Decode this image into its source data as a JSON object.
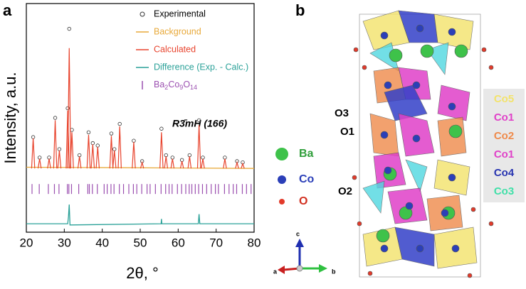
{
  "panel_labels": [
    "a",
    "b"
  ],
  "chart_data": {
    "type": "xrd",
    "xlabel": "2θ, °",
    "ylabel": "Intensity, a.u.",
    "annotation": "R3̄mH (166)",
    "xlim": [
      20,
      80
    ],
    "xticks": [
      20,
      30,
      40,
      50,
      60,
      70,
      80
    ],
    "ylim": [
      -53,
      137
    ],
    "series": [
      {
        "name": "Experimental",
        "color": "#333333",
        "marker": "circle",
        "x": [
          21.8,
          23.5,
          26.0,
          27.6,
          28.7,
          30.9,
          31.3,
          32.0,
          34.0,
          36.4,
          37.5,
          38.8,
          42.4,
          43.2,
          44.6,
          48.3,
          50.5,
          55.6,
          56.8,
          58.5,
          61.0,
          63.0,
          65.5,
          66.5,
          72.3,
          75.5,
          77.0
        ],
        "values": [
          26,
          9,
          9,
          42,
          16,
          50,
          116,
          32,
          11,
          30,
          21,
          19,
          29,
          16,
          37,
          23,
          6,
          33,
          11,
          9,
          7,
          11,
          40,
          9,
          9,
          6,
          5
        ]
      },
      {
        "name": "Background",
        "color": "#e8a93a",
        "marker": "line",
        "x": [
          20,
          80
        ],
        "values": [
          1,
          0
        ]
      },
      {
        "name": "Calculated",
        "color": "#e8442e",
        "marker": "peaks",
        "x": [
          21.8,
          23.5,
          26.0,
          27.6,
          28.7,
          30.9,
          31.3,
          32.0,
          34.0,
          36.4,
          37.5,
          38.8,
          42.4,
          43.2,
          44.6,
          48.3,
          50.5,
          55.6,
          56.8,
          58.5,
          61.0,
          63.0,
          65.5,
          66.5,
          72.3,
          75.5,
          77.0
        ],
        "values": [
          25,
          8,
          8,
          40,
          15,
          48,
          100,
          30,
          10,
          28,
          20,
          18,
          27,
          15,
          35,
          22,
          5,
          30,
          10,
          8,
          6,
          10,
          36,
          8,
          8,
          5,
          4
        ]
      },
      {
        "name": "Difference (Exp. - Calc.)",
        "color": "#2aa198",
        "marker": "line",
        "x": [
          20,
          30.9,
          31.1,
          31.3,
          31.5,
          55.5,
          55.6,
          55.7,
          65.3,
          65.5,
          65.7,
          80
        ],
        "values": [
          -46,
          -46,
          -40,
          -30,
          -47,
          -46,
          -42,
          -46,
          -46,
          -38,
          -46,
          -46
        ]
      },
      {
        "name": "Ba2Co9O14",
        "color": "#9b4fb0",
        "marker": "reflections",
        "x": [
          21.5,
          23.4,
          25.8,
          27.4,
          28.6,
          30.8,
          31.2,
          31.9,
          33.8,
          36.2,
          36.6,
          37.4,
          38.7,
          40.5,
          41.3,
          42.3,
          43.1,
          44.5,
          45.6,
          47.0,
          48.2,
          49.1,
          50.4,
          51.8,
          52.6,
          54.0,
          55.5,
          56.7,
          57.6,
          58.4,
          59.8,
          60.9,
          62.0,
          62.9,
          63.6,
          64.5,
          65.4,
          66.4,
          67.5,
          68.7,
          69.8,
          70.6,
          72.2,
          73.4,
          74.5,
          75.4,
          76.9,
          78.0,
          79.2
        ]
      }
    ]
  },
  "structure": {
    "site_labels": [
      "O3",
      "O1",
      "O2"
    ],
    "legend": [
      "Ba",
      "Co",
      "O"
    ],
    "cobalt_sites": [
      "Co5",
      "Co1",
      "Co2",
      "Co1",
      "Co4",
      "Co3"
    ],
    "axes": [
      "a",
      "b",
      "c"
    ]
  }
}
